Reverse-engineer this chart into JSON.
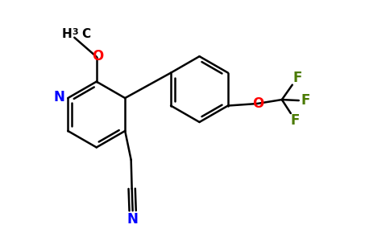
{
  "bg_color": "#ffffff",
  "bond_color": "#000000",
  "N_color": "#0000ff",
  "O_color": "#ff0000",
  "F_color": "#4a7a00",
  "line_width": 1.8,
  "fig_width": 4.84,
  "fig_height": 3.0,
  "xlim": [
    0,
    9.5
  ],
  "ylim": [
    0,
    5.9
  ]
}
